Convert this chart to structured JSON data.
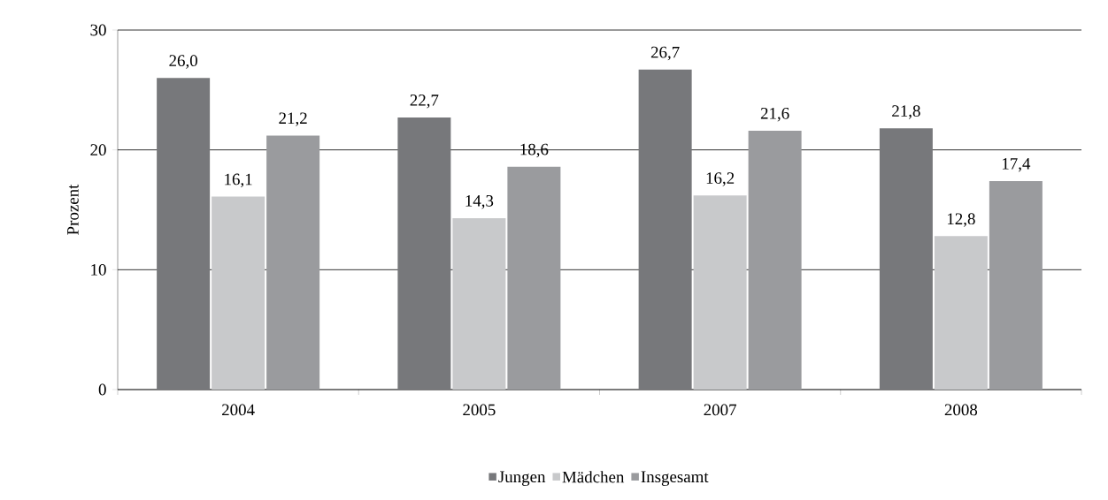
{
  "chart_data": {
    "type": "bar",
    "ylabel": "Prozent",
    "categories": [
      "2004",
      "2005",
      "2007",
      "2008"
    ],
    "series": [
      {
        "name": "Jungen",
        "color": "#77787b",
        "values": [
          26.0,
          22.7,
          26.7,
          21.8
        ],
        "value_labels": [
          "26,0",
          "22,7",
          "26,7",
          "21,8"
        ]
      },
      {
        "name": "Mädchen",
        "color": "#c8c9cb",
        "values": [
          16.1,
          14.3,
          16.2,
          12.8
        ],
        "value_labels": [
          "16,1",
          "14,3",
          "16,2",
          "12,8"
        ]
      },
      {
        "name": "Insgesamt",
        "color": "#9a9b9e",
        "values": [
          21.2,
          18.6,
          21.6,
          17.4
        ],
        "value_labels": [
          "21,2",
          "18,6",
          "21,6",
          "17,4"
        ]
      }
    ],
    "ylim": [
      0,
      30
    ],
    "yticks": [
      0,
      10,
      20,
      30
    ],
    "grid": "y",
    "legend": "bottom"
  }
}
